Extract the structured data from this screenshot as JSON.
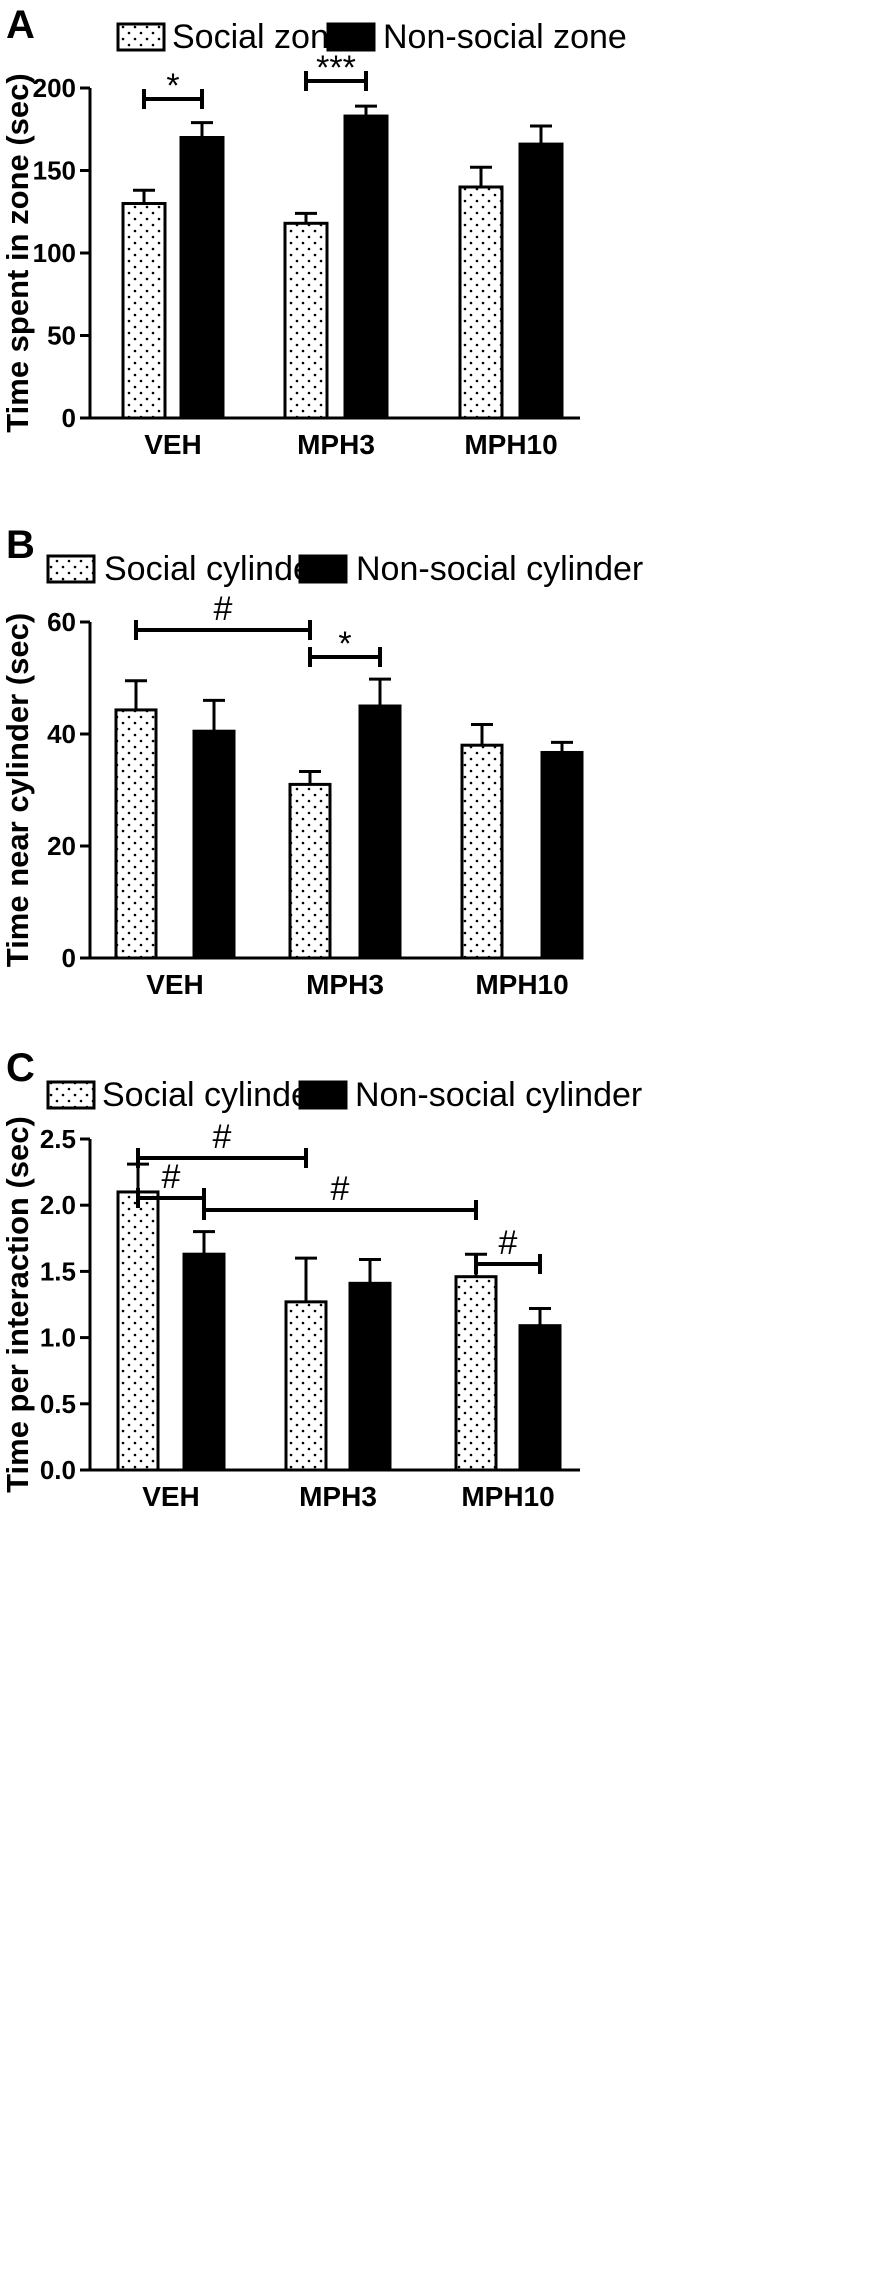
{
  "chart_data": [
    {
      "panel": "A",
      "type": "bar",
      "categories": [
        "VEH",
        "MPH3",
        "MPH10"
      ],
      "series": [
        {
          "name": "Social zone",
          "pattern": "dotted",
          "values": [
            130,
            118,
            140
          ],
          "errors": [
            8,
            6,
            12
          ]
        },
        {
          "name": "Non-social zone",
          "pattern": "solid",
          "values": [
            170,
            183,
            166
          ],
          "errors": [
            9,
            6,
            11
          ]
        }
      ],
      "ylabel": "Time spent in zone (sec)",
      "ylim": [
        0,
        200
      ],
      "yticks": [
        "0",
        "50",
        "100",
        "150",
        "200"
      ],
      "legend_position": "top",
      "annotations": [
        {
          "label": "*",
          "from": "VEH Social zone",
          "to": "VEH Non-social zone"
        },
        {
          "label": "***",
          "from": "MPH3 Social zone",
          "to": "MPH3 Non-social zone"
        }
      ]
    },
    {
      "panel": "B",
      "type": "bar",
      "categories": [
        "VEH",
        "MPH3",
        "MPH10"
      ],
      "series": [
        {
          "name": "Social cylinder",
          "pattern": "dotted",
          "values": [
            44.3,
            31,
            38
          ],
          "errors": [
            5.2,
            2.3,
            3.7
          ]
        },
        {
          "name": "Non-social cylinder",
          "pattern": "solid",
          "values": [
            40.5,
            45,
            36.7
          ],
          "errors": [
            5.5,
            4.8,
            1.8
          ]
        }
      ],
      "ylabel": "Time near cylinder (sec)",
      "ylim": [
        0,
        60
      ],
      "yticks": [
        "0",
        "20",
        "40",
        "60"
      ],
      "legend_position": "top",
      "annotations": [
        {
          "label": "#",
          "from": "VEH Social cylinder",
          "to": "MPH3 Social cylinder"
        },
        {
          "label": "*",
          "from": "MPH3 Social cylinder",
          "to": "MPH3 Non-social cylinder"
        }
      ]
    },
    {
      "panel": "C",
      "type": "bar",
      "categories": [
        "VEH",
        "MPH3",
        "MPH10"
      ],
      "series": [
        {
          "name": "Social cylinder",
          "pattern": "dotted",
          "values": [
            2.1,
            1.27,
            1.46
          ],
          "errors": [
            0.21,
            0.33,
            0.17
          ]
        },
        {
          "name": "Non-social cylinder",
          "pattern": "solid",
          "values": [
            1.63,
            1.41,
            1.09
          ],
          "errors": [
            0.17,
            0.18,
            0.13
          ]
        }
      ],
      "ylabel": "Time per interaction (sec)",
      "ylim": [
        0,
        2.5
      ],
      "yticks": [
        "0.0",
        "0.5",
        "1.0",
        "1.5",
        "2.0",
        "2.5"
      ],
      "legend_position": "top",
      "annotations": [
        {
          "label": "#",
          "from": "VEH Social cylinder",
          "to": "MPH3 Social cylinder"
        },
        {
          "label": "#",
          "from": "VEH Social cylinder",
          "to": "VEH Non-social cylinder"
        },
        {
          "label": "#",
          "from": "VEH Non-social cylinder",
          "to": "MPH10 Social cylinder"
        },
        {
          "label": "#",
          "from": "MPH10 Social cylinder",
          "to": "MPH10 Non-social cylinder"
        }
      ]
    }
  ]
}
